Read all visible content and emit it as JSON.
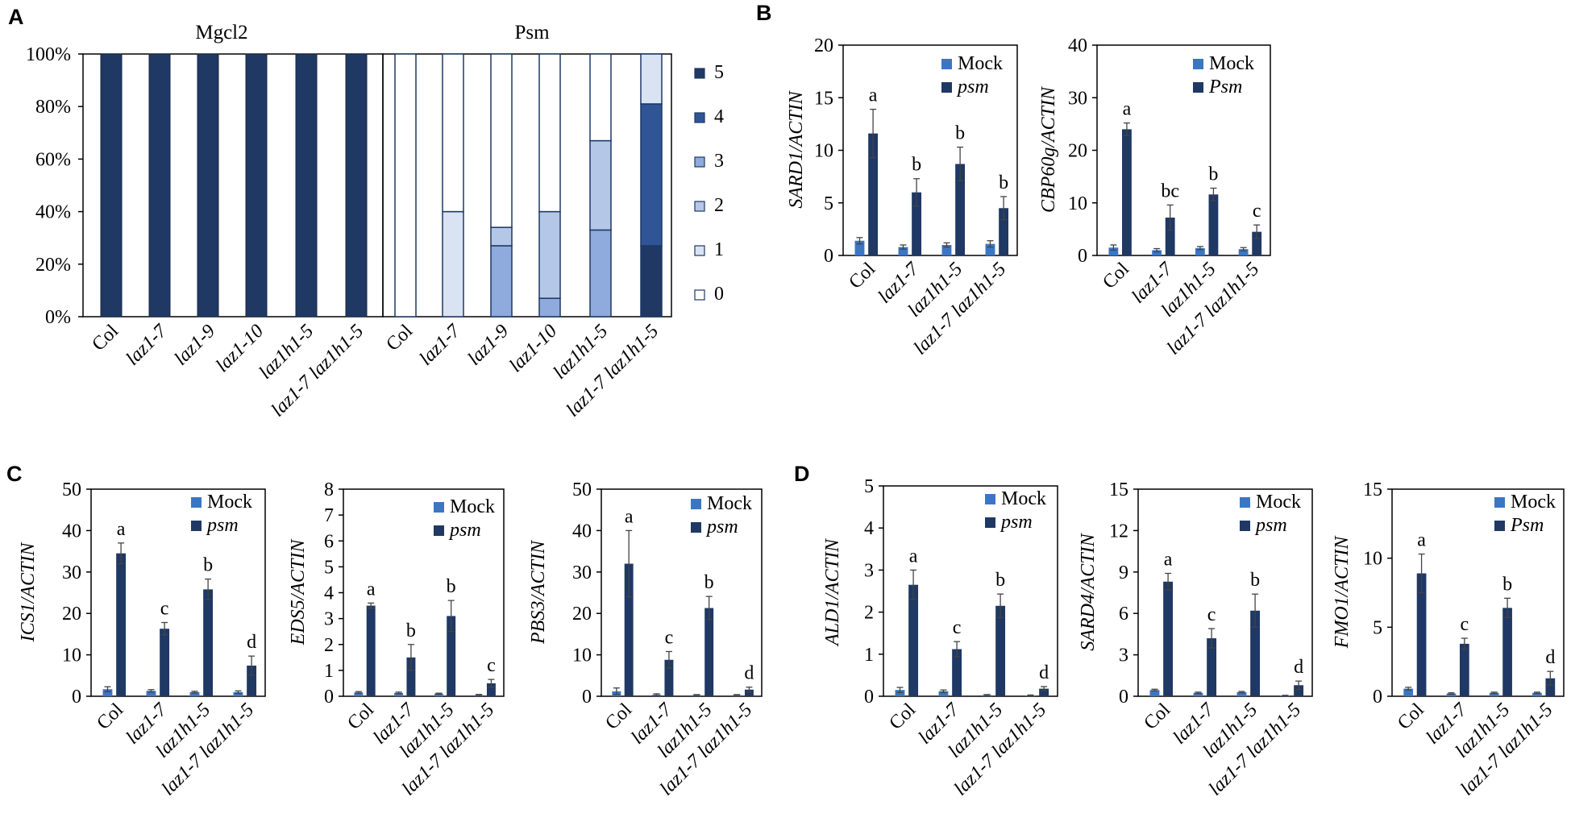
{
  "colors": {
    "mock": "#3b76c4",
    "psm": "#1f3864",
    "axis": "#000000"
  },
  "panel_letters": [
    "A",
    "B",
    "C",
    "D"
  ],
  "chart_data": [
    {
      "id": "A",
      "type": "bar",
      "stacked": true,
      "groups": [
        "Mgcl2",
        "Psm"
      ],
      "categories": [
        "Col",
        "laz1-7",
        "laz1-9",
        "laz1-10",
        "laz1h1-5",
        "laz1-7 laz1h1-5"
      ],
      "yticks": [
        "0%",
        "20%",
        "40%",
        "60%",
        "80%",
        "100%"
      ],
      "ylim": [
        0,
        100
      ],
      "legend": [
        "5",
        "4",
        "3",
        "2",
        "1",
        "0"
      ],
      "legend_colors": [
        "#1f3864",
        "#2f5597",
        "#8faadc",
        "#b4c7e7",
        "#dae3f3",
        "#ffffff"
      ],
      "series": [
        {
          "group": "Mgcl2",
          "name": "5",
          "values": [
            100,
            100,
            100,
            100,
            100,
            100
          ]
        },
        {
          "group": "Psm",
          "name": "5",
          "values": [
            0,
            0,
            0,
            0,
            0,
            27
          ]
        },
        {
          "group": "Psm",
          "name": "4",
          "values": [
            0,
            0,
            0,
            0,
            0,
            54
          ]
        },
        {
          "group": "Psm",
          "name": "3",
          "values": [
            0,
            0,
            27,
            7,
            33,
            0
          ]
        },
        {
          "group": "Psm",
          "name": "2",
          "values": [
            0,
            0,
            7,
            33,
            34,
            0
          ]
        },
        {
          "group": "Psm",
          "name": "1",
          "values": [
            0,
            40,
            0,
            0,
            0,
            19
          ]
        },
        {
          "group": "Psm",
          "name": "0",
          "values": [
            100,
            60,
            66,
            60,
            33,
            0
          ]
        }
      ]
    },
    {
      "id": "B1",
      "type": "bar",
      "categories": [
        "Col",
        "laz1-7",
        "laz1h1-5",
        "laz1-7 laz1h1-5"
      ],
      "ylabel": "SARD1/ACTIN",
      "ylim": [
        0,
        20
      ],
      "yticks": [
        "0",
        "5",
        "10",
        "15",
        "20"
      ],
      "legend": [
        "Mock",
        "psm"
      ],
      "series": [
        {
          "name": "Mock",
          "values": [
            1.4,
            0.8,
            1.0,
            1.1
          ],
          "err": [
            0.3,
            0.2,
            0.2,
            0.3
          ]
        },
        {
          "name": "psm",
          "values": [
            11.6,
            6.0,
            8.7,
            4.5
          ],
          "err": [
            2.3,
            1.3,
            1.6,
            1.1
          ]
        }
      ],
      "letters": [
        "a",
        "b",
        "b",
        "b"
      ]
    },
    {
      "id": "B2",
      "type": "bar",
      "categories": [
        "Col",
        "laz1-7",
        "laz1h1-5",
        "laz1-7 laz1h1-5"
      ],
      "ylabel": "CBP60g/ACTIN",
      "ylim": [
        0,
        40
      ],
      "yticks": [
        "0",
        "10",
        "20",
        "30",
        "40"
      ],
      "legend": [
        "Mock",
        "Psm"
      ],
      "series": [
        {
          "name": "Mock",
          "values": [
            1.5,
            1.0,
            1.4,
            1.2
          ],
          "err": [
            0.5,
            0.3,
            0.3,
            0.3
          ]
        },
        {
          "name": "Psm",
          "values": [
            24.0,
            7.2,
            11.6,
            4.5
          ],
          "err": [
            1.2,
            2.4,
            1.2,
            1.3
          ]
        }
      ],
      "letters": [
        "a",
        "bc",
        "b",
        "c"
      ]
    },
    {
      "id": "C1",
      "type": "bar",
      "categories": [
        "Col",
        "laz1-7",
        "laz1h1-5",
        "laz1-7 laz1h1-5"
      ],
      "ylabel": "ICS1/ACTIN",
      "ylim": [
        0,
        50
      ],
      "yticks": [
        "0",
        "10",
        "20",
        "30",
        "40",
        "50"
      ],
      "legend": [
        "Mock",
        "psm"
      ],
      "series": [
        {
          "name": "Mock",
          "values": [
            1.7,
            1.3,
            1.0,
            1.0
          ],
          "err": [
            0.6,
            0.3,
            0.2,
            0.3
          ]
        },
        {
          "name": "psm",
          "values": [
            34.5,
            16.3,
            25.8,
            7.4
          ],
          "err": [
            2.5,
            1.5,
            2.5,
            2.3
          ]
        }
      ],
      "letters": [
        "a",
        "c",
        "b",
        "d"
      ]
    },
    {
      "id": "C2",
      "type": "bar",
      "categories": [
        "Col",
        "laz1-7",
        "laz1h1-5",
        "laz1-7 laz1h1-5"
      ],
      "ylabel": "EDS5/ACTIN",
      "ylim": [
        0,
        8
      ],
      "yticks": [
        "0",
        "1",
        "2",
        "3",
        "4",
        "5",
        "6",
        "7",
        "8"
      ],
      "legend": [
        "Mock",
        "psm"
      ],
      "series": [
        {
          "name": "Mock",
          "values": [
            0.15,
            0.13,
            0.1,
            0.05
          ],
          "err": [
            0.03,
            0.03,
            0.02,
            0.02
          ]
        },
        {
          "name": "psm",
          "values": [
            3.5,
            1.5,
            3.1,
            0.5
          ],
          "err": [
            0.1,
            0.5,
            0.6,
            0.15
          ]
        }
      ],
      "letters": [
        "a",
        "b",
        "b",
        "c"
      ]
    },
    {
      "id": "C3",
      "type": "bar",
      "categories": [
        "Col",
        "laz1-7",
        "laz1h1-5",
        "laz1-7 laz1h1-5"
      ],
      "ylabel": "PBS3/ACTIN",
      "ylim": [
        0,
        50
      ],
      "yticks": [
        "0",
        "10",
        "20",
        "30",
        "40",
        "50"
      ],
      "legend": [
        "Mock",
        "psm"
      ],
      "series": [
        {
          "name": "Mock",
          "values": [
            1.2,
            0.4,
            0.3,
            0.3
          ],
          "err": [
            0.8,
            0.2,
            0.1,
            0.1
          ]
        },
        {
          "name": "psm",
          "values": [
            32.0,
            8.8,
            21.3,
            1.6
          ],
          "err": [
            8.0,
            2.0,
            2.8,
            0.6
          ]
        }
      ],
      "letters": [
        "a",
        "c",
        "b",
        "d"
      ]
    },
    {
      "id": "D1",
      "type": "bar",
      "categories": [
        "Col",
        "laz1-7",
        "laz1h1-5",
        "laz1-7 laz1h1-5"
      ],
      "ylabel": "ALD1/ACTIN",
      "ylim": [
        0,
        5
      ],
      "yticks": [
        "0",
        "1",
        "2",
        "3",
        "4",
        "5"
      ],
      "legend": [
        "Mock",
        "psm"
      ],
      "series": [
        {
          "name": "Mock",
          "values": [
            0.15,
            0.12,
            0.03,
            0.02
          ],
          "err": [
            0.06,
            0.03,
            0.01,
            0.01
          ]
        },
        {
          "name": "psm",
          "values": [
            2.65,
            1.12,
            2.15,
            0.18
          ],
          "err": [
            0.35,
            0.18,
            0.28,
            0.05
          ]
        }
      ],
      "letters": [
        "a",
        "c",
        "b",
        "d"
      ]
    },
    {
      "id": "D2",
      "type": "bar",
      "categories": [
        "Col",
        "laz1-7",
        "laz1h1-5",
        "laz1-7 laz1h1-5"
      ],
      "ylabel": "SARD4/ACTIN",
      "ylim": [
        0,
        15
      ],
      "yticks": [
        "0",
        "3",
        "6",
        "9",
        "12",
        "15"
      ],
      "legend": [
        "Mock",
        "psm"
      ],
      "series": [
        {
          "name": "Mock",
          "values": [
            0.45,
            0.25,
            0.3,
            0.05
          ],
          "err": [
            0.06,
            0.05,
            0.05,
            0.02
          ]
        },
        {
          "name": "psm",
          "values": [
            8.3,
            4.2,
            6.2,
            0.8
          ],
          "err": [
            0.6,
            0.7,
            1.2,
            0.3
          ]
        }
      ],
      "letters": [
        "a",
        "c",
        "b",
        "d"
      ]
    },
    {
      "id": "D3",
      "type": "bar",
      "categories": [
        "Col",
        "laz1-7",
        "laz1h1-5",
        "laz1-7 laz1h1-5"
      ],
      "ylabel": "FMO1/ACTIN",
      "ylim": [
        0,
        15
      ],
      "yticks": [
        "0",
        "5",
        "10",
        "15"
      ],
      "legend": [
        "Mock",
        "Psm"
      ],
      "series": [
        {
          "name": "Mock",
          "values": [
            0.55,
            0.2,
            0.25,
            0.25
          ],
          "err": [
            0.1,
            0.05,
            0.05,
            0.05
          ]
        },
        {
          "name": "Psm",
          "values": [
            8.9,
            3.8,
            6.4,
            1.3
          ],
          "err": [
            1.4,
            0.4,
            0.7,
            0.5
          ]
        }
      ],
      "letters": [
        "a",
        "c",
        "b",
        "d"
      ]
    }
  ]
}
